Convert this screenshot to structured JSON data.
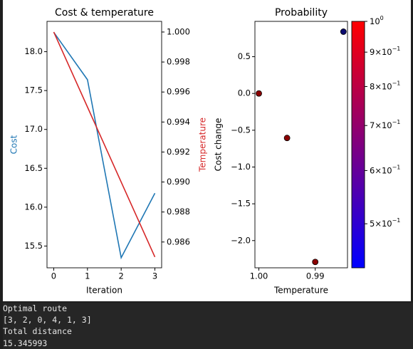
{
  "chart_data": [
    {
      "type": "line",
      "title": "Cost & temperature",
      "xlabel": "Iteration",
      "x": [
        0,
        1,
        2,
        3
      ],
      "xlim": [
        -0.2,
        3.2
      ],
      "xticks": [
        "0",
        "1",
        "2",
        "3"
      ],
      "series": [
        {
          "name": "Cost",
          "axis": "left",
          "color": "#1f77b4",
          "values": [
            18.25,
            17.64,
            15.35,
            16.18
          ]
        },
        {
          "name": "Temperature",
          "axis": "right",
          "color": "#d62728",
          "values": [
            1.0,
            0.995,
            0.99,
            0.985
          ]
        }
      ],
      "ylabel_left": "Cost",
      "ylabel_left_color": "#1f77b4",
      "ylim_left": [
        15.22,
        18.39
      ],
      "yticks_left": [
        {
          "v": 15.5,
          "label": "15.5"
        },
        {
          "v": 16.0,
          "label": "16.0"
        },
        {
          "v": 16.5,
          "label": "16.5"
        },
        {
          "v": 17.0,
          "label": "17.0"
        },
        {
          "v": 17.5,
          "label": "17.5"
        },
        {
          "v": 18.0,
          "label": "18.0"
        }
      ],
      "ylabel_right": "Temperature",
      "ylabel_right_color": "#d62728",
      "ylim_right": [
        0.98428,
        1.00071
      ],
      "yticks_right": [
        {
          "v": 0.986,
          "label": "0.986"
        },
        {
          "v": 0.988,
          "label": "0.988"
        },
        {
          "v": 0.99,
          "label": "0.990"
        },
        {
          "v": 0.992,
          "label": "0.992"
        },
        {
          "v": 0.994,
          "label": "0.994"
        },
        {
          "v": 0.996,
          "label": "0.996"
        },
        {
          "v": 0.998,
          "label": "0.998"
        },
        {
          "v": 1.0,
          "label": "1.000"
        }
      ]
    },
    {
      "type": "scatter",
      "title": "Probability",
      "xlabel": "Temperature",
      "ylabel": "Cost change",
      "xlim": [
        1.0007,
        0.98428
      ],
      "ylim": [
        -2.37,
        0.98
      ],
      "xticks": [
        {
          "v": 1.0,
          "label": "1.00"
        },
        {
          "v": 0.99,
          "label": "0.99"
        }
      ],
      "yticks": [
        {
          "v": 0.5,
          "label": "0.5"
        },
        {
          "v": 0.0,
          "label": "0.0"
        },
        {
          "v": -0.5,
          "label": "−0.5"
        },
        {
          "v": -1.0,
          "label": "−1.0"
        },
        {
          "v": -1.5,
          "label": "−1.5"
        },
        {
          "v": -2.0,
          "label": "−2.0"
        }
      ],
      "points": [
        {
          "x": 1.0,
          "y": 0.0,
          "p": 1.0
        },
        {
          "x": 0.995,
          "y": -0.605,
          "p": 1.0
        },
        {
          "x": 0.99,
          "y": -2.29,
          "p": 1.0
        },
        {
          "x": 0.985,
          "y": 0.84,
          "p": 0.43
        }
      ],
      "colorbar": {
        "scale": "log",
        "range": [
          0.43,
          1.0
        ],
        "colors": [
          "#0000ff",
          "#ff0000"
        ],
        "ticks": [
          {
            "v": 1.0,
            "label": "10^0",
            "base": "10",
            "exp": "0"
          },
          {
            "v": 0.9,
            "label": "9×10^−1",
            "base": "9×10",
            "exp": "−1"
          },
          {
            "v": 0.8,
            "label": "8×10^−1",
            "base": "8×10",
            "exp": "−1"
          },
          {
            "v": 0.7,
            "label": "7×10^−1",
            "base": "7×10",
            "exp": "−1"
          },
          {
            "v": 0.6,
            "label": "6×10^−1",
            "base": "6×10",
            "exp": "−1"
          },
          {
            "v": 0.5,
            "label": "5×10^−1",
            "base": "5×10",
            "exp": "−1"
          }
        ]
      }
    }
  ],
  "console": {
    "lines": [
      "Optimal route",
      "[3, 2, 0, 4, 1, 3]",
      "Total distance",
      "15.345993"
    ]
  }
}
